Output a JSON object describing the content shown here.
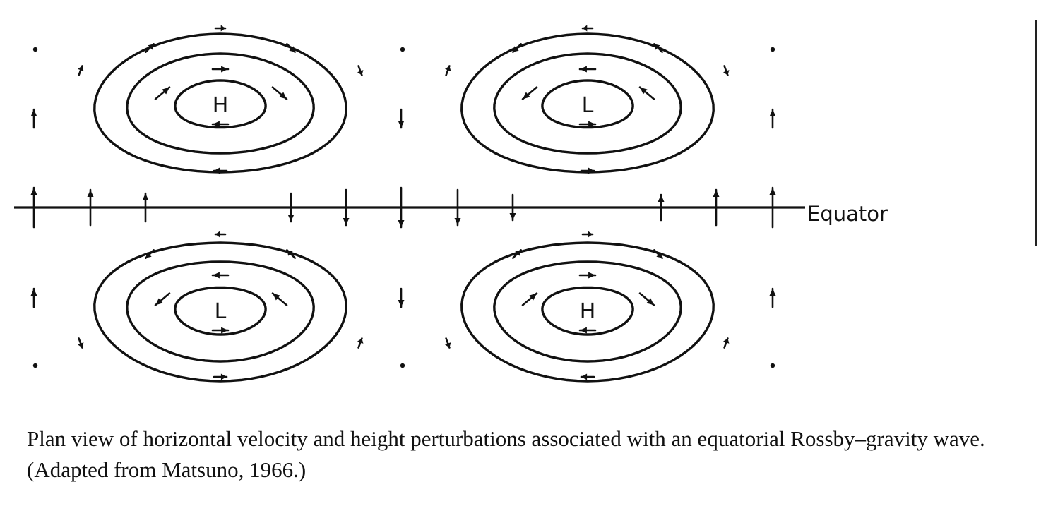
{
  "diagram": {
    "equator_label": "Equator",
    "cells": [
      {
        "label": "H"
      },
      {
        "label": "L"
      },
      {
        "label": "L"
      },
      {
        "label": "H"
      }
    ],
    "caption": "Plan view of horizontal velocity and height perturbations associated with an equatorial Rossby–gravity wave. (Adapted from Matsuno, 1966.)"
  }
}
